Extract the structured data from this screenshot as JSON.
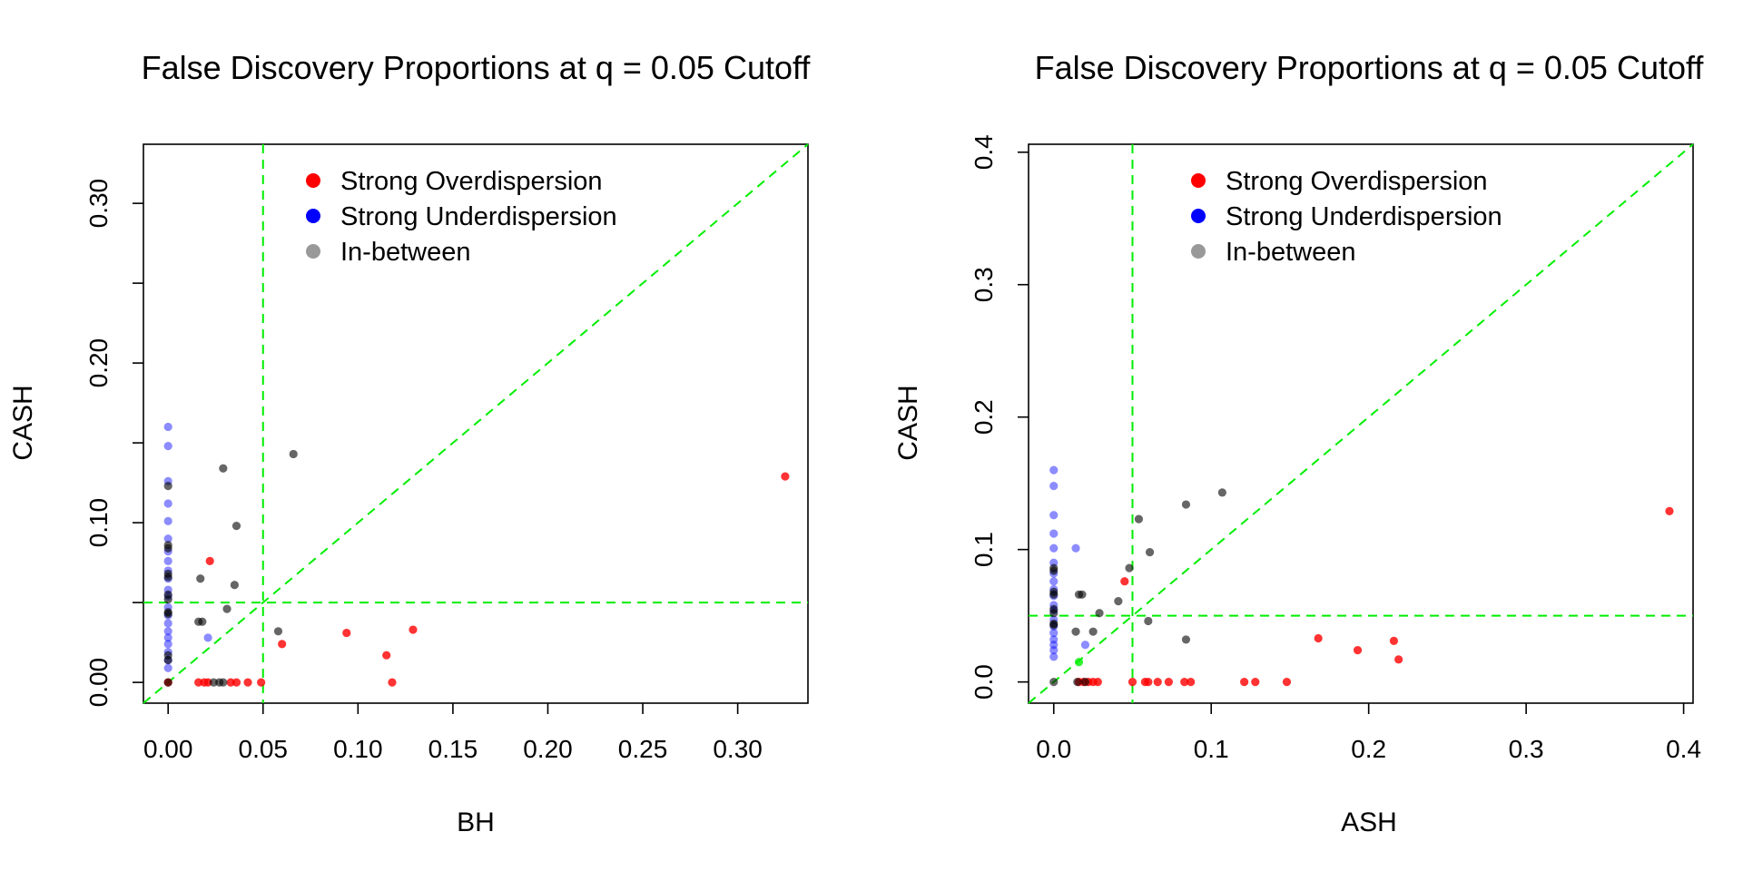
{
  "colors": {
    "strong_over": "#ff0000",
    "strong_under": "#0000ff",
    "in_between": "#000000",
    "in_between_legend": "#999999",
    "reference_lines": "#00ee00"
  },
  "chart_data": [
    {
      "type": "scatter",
      "title": "False Discovery Proportions at q = 0.05 Cutoff",
      "xlabel": "BH",
      "ylabel": "CASH",
      "xlim": [
        -0.013,
        0.337
      ],
      "ylim": [
        -0.013,
        0.337
      ],
      "xticks": [
        0,
        0.05,
        0.1,
        0.15,
        0.2,
        0.25,
        0.3
      ],
      "xtick_labels": [
        "0.00",
        "0.05",
        "0.10",
        "0.15",
        "0.20",
        "0.25",
        "0.30"
      ],
      "yticks": [
        0,
        0.05,
        0.1,
        0.15,
        0.2,
        0.25,
        0.3
      ],
      "ytick_labels": [
        "0.00",
        "",
        "0.10",
        "",
        "0.20",
        "",
        "0.30"
      ],
      "reference_lines": {
        "vertical": 0.05,
        "horizontal": 0.05,
        "diagonal": true
      },
      "legend": [
        "Strong Overdispersion",
        "Strong Underdispersion",
        "In-between"
      ],
      "legend_position": "top",
      "series": [
        {
          "name": "Strong Overdispersion",
          "color": "#ff0000",
          "points": [
            [
              0.325,
              0.129
            ],
            [
              0.022,
              0.076
            ],
            [
              0.06,
              0.024
            ],
            [
              0.094,
              0.031
            ],
            [
              0.115,
              0.017
            ],
            [
              0.129,
              0.033
            ],
            [
              0.118,
              0.0
            ],
            [
              0.0,
              0.0
            ],
            [
              0.016,
              0.0
            ],
            [
              0.019,
              0.0
            ],
            [
              0.021,
              0.0
            ],
            [
              0.033,
              0.0
            ],
            [
              0.036,
              0.0
            ],
            [
              0.042,
              0.0
            ],
            [
              0.049,
              0.0
            ]
          ]
        },
        {
          "name": "Strong Underdispersion",
          "color": "#0000ff",
          "points": [
            [
              0.0,
              0.16
            ],
            [
              0.0,
              0.148
            ],
            [
              0.0,
              0.126
            ],
            [
              0.0,
              0.112
            ],
            [
              0.0,
              0.101
            ],
            [
              0.0,
              0.09
            ],
            [
              0.0,
              0.082
            ],
            [
              0.0,
              0.076
            ],
            [
              0.0,
              0.07
            ],
            [
              0.0,
              0.065
            ],
            [
              0.0,
              0.058
            ],
            [
              0.0,
              0.054
            ],
            [
              0.0,
              0.047
            ],
            [
              0.0,
              0.042
            ],
            [
              0.0,
              0.037
            ],
            [
              0.0,
              0.032
            ],
            [
              0.0,
              0.028
            ],
            [
              0.0,
              0.024
            ],
            [
              0.0,
              0.019
            ],
            [
              0.0,
              0.014
            ],
            [
              0.0,
              0.009
            ],
            [
              0.021,
              0.028
            ]
          ]
        },
        {
          "name": "In-between",
          "color": "#000000",
          "points": [
            [
              0.066,
              0.143
            ],
            [
              0.029,
              0.134
            ],
            [
              0.036,
              0.098
            ],
            [
              0.035,
              0.061
            ],
            [
              0.017,
              0.065
            ],
            [
              0.031,
              0.046
            ],
            [
              0.016,
              0.038
            ],
            [
              0.018,
              0.038
            ],
            [
              0.058,
              0.032
            ],
            [
              0.0,
              0.123
            ],
            [
              0.0,
              0.086
            ],
            [
              0.0,
              0.084
            ],
            [
              0.0,
              0.068
            ],
            [
              0.0,
              0.066
            ],
            [
              0.0,
              0.055
            ],
            [
              0.0,
              0.052
            ],
            [
              0.0,
              0.044
            ],
            [
              0.0,
              0.043
            ],
            [
              0.0,
              0.017
            ],
            [
              0.0,
              0.014
            ],
            [
              0.0,
              0.0
            ],
            [
              0.024,
              0.0
            ],
            [
              0.027,
              0.0
            ],
            [
              0.029,
              0.0
            ]
          ]
        }
      ]
    },
    {
      "type": "scatter",
      "title": "False Discovery Proportions at q = 0.05 Cutoff",
      "xlabel": "ASH",
      "ylabel": "CASH",
      "xlim": [
        -0.016,
        0.406
      ],
      "ylim": [
        -0.016,
        0.406
      ],
      "xticks": [
        0,
        0.1,
        0.2,
        0.3,
        0.4
      ],
      "xtick_labels": [
        "0.0",
        "0.1",
        "0.2",
        "0.3",
        "0.4"
      ],
      "yticks": [
        0,
        0.1,
        0.2,
        0.3,
        0.4
      ],
      "ytick_labels": [
        "0.0",
        "0.1",
        "0.2",
        "0.3",
        "0.4"
      ],
      "reference_lines": {
        "vertical": 0.05,
        "horizontal": 0.05,
        "diagonal": true
      },
      "legend": [
        "Strong Overdispersion",
        "Strong Underdispersion",
        "In-between"
      ],
      "legend_position": "top",
      "series": [
        {
          "name": "Strong Overdispersion",
          "color": "#ff0000",
          "points": [
            [
              0.391,
              0.129
            ],
            [
              0.045,
              0.076
            ],
            [
              0.168,
              0.033
            ],
            [
              0.193,
              0.024
            ],
            [
              0.216,
              0.031
            ],
            [
              0.219,
              0.017
            ],
            [
              0.016,
              0.0
            ],
            [
              0.019,
              0.0
            ],
            [
              0.022,
              0.0
            ],
            [
              0.025,
              0.0
            ],
            [
              0.028,
              0.0
            ],
            [
              0.05,
              0.0
            ],
            [
              0.058,
              0.0
            ],
            [
              0.06,
              0.0
            ],
            [
              0.066,
              0.0
            ],
            [
              0.073,
              0.0
            ],
            [
              0.083,
              0.0
            ],
            [
              0.087,
              0.0
            ],
            [
              0.121,
              0.0
            ],
            [
              0.128,
              0.0
            ],
            [
              0.148,
              0.0
            ]
          ]
        },
        {
          "name": "Strong Underdispersion",
          "color": "#0000ff",
          "points": [
            [
              0.0,
              0.16
            ],
            [
              0.0,
              0.148
            ],
            [
              0.0,
              0.126
            ],
            [
              0.0,
              0.112
            ],
            [
              0.0,
              0.101
            ],
            [
              0.0,
              0.09
            ],
            [
              0.0,
              0.082
            ],
            [
              0.0,
              0.076
            ],
            [
              0.0,
              0.07
            ],
            [
              0.0,
              0.065
            ],
            [
              0.0,
              0.058
            ],
            [
              0.0,
              0.054
            ],
            [
              0.0,
              0.047
            ],
            [
              0.0,
              0.042
            ],
            [
              0.0,
              0.037
            ],
            [
              0.0,
              0.032
            ],
            [
              0.0,
              0.028
            ],
            [
              0.0,
              0.024
            ],
            [
              0.0,
              0.019
            ],
            [
              0.014,
              0.101
            ],
            [
              0.02,
              0.028
            ]
          ]
        },
        {
          "name": "In-between",
          "color": "#000000",
          "points": [
            [
              0.107,
              0.143
            ],
            [
              0.084,
              0.134
            ],
            [
              0.054,
              0.123
            ],
            [
              0.061,
              0.098
            ],
            [
              0.048,
              0.086
            ],
            [
              0.041,
              0.061
            ],
            [
              0.029,
              0.052
            ],
            [
              0.016,
              0.066
            ],
            [
              0.018,
              0.066
            ],
            [
              0.025,
              0.038
            ],
            [
              0.014,
              0.038
            ],
            [
              0.06,
              0.046
            ],
            [
              0.084,
              0.032
            ],
            [
              0.0,
              0.086
            ],
            [
              0.0,
              0.084
            ],
            [
              0.0,
              0.068
            ],
            [
              0.0,
              0.066
            ],
            [
              0.0,
              0.055
            ],
            [
              0.0,
              0.052
            ],
            [
              0.0,
              0.044
            ],
            [
              0.0,
              0.043
            ],
            [
              0.0,
              0.0
            ],
            [
              0.015,
              0.0
            ],
            [
              0.02,
              0.0
            ]
          ]
        },
        {
          "name": "",
          "color": "#00ee00",
          "points": [
            [
              0.016,
              0.015
            ]
          ]
        }
      ]
    }
  ]
}
